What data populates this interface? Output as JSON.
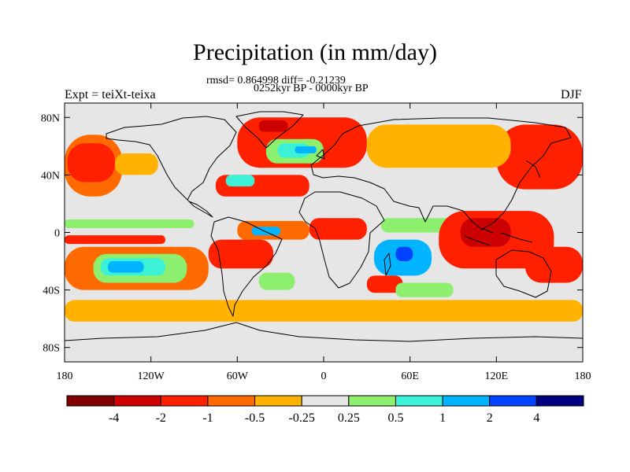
{
  "title": "Precipitation (in mm/day)",
  "stats_line": "rmsd= 0.864998 diff= -0.21239",
  "period_line": "0252kyr BP - 0000kyr BP",
  "left_label": "Expt = teiXt-teixa",
  "right_label": "DJF",
  "chart_data": {
    "type": "heatmap",
    "projection": "cylindrical-equidistant",
    "variable": "Precipitation difference (mm/day)",
    "xlim": [
      -180,
      180
    ],
    "ylim": [
      -90,
      90
    ],
    "x_ticks": [
      -180,
      -120,
      -60,
      0,
      60,
      120,
      180
    ],
    "x_tick_labels": [
      "180",
      "120W",
      "60W",
      "0",
      "60E",
      "120E",
      "180"
    ],
    "y_ticks": [
      80,
      40,
      0,
      -40,
      -80
    ],
    "y_tick_labels": [
      "80N",
      "40N",
      "0",
      "40S",
      "80S"
    ],
    "colorbar": {
      "colors": [
        "#800000",
        "#cc0000",
        "#ff2000",
        "#ff6a00",
        "#ffb300",
        "#e6e6e6",
        "#8cf06e",
        "#3cf2d6",
        "#00b4ff",
        "#0044ff",
        "#000080"
      ],
      "boundaries": [
        -4,
        -2,
        -1,
        -0.5,
        -0.25,
        0.25,
        0.5,
        1,
        2,
        4
      ],
      "tick_labels": [
        "-4",
        "-2",
        "-1",
        "-0.5",
        "-0.25",
        "0.25",
        "0.5",
        "1",
        "2",
        "4"
      ]
    },
    "regions": [
      {
        "name": "southern-ocean-band",
        "lon": [
          -180,
          180
        ],
        "lat": [
          -62,
          -47
        ],
        "value": -0.35
      },
      {
        "name": "southern-ocean-inner-band",
        "lon": [
          -180,
          180
        ],
        "lat": [
          -58,
          -51
        ],
        "value": -0.35
      },
      {
        "name": "north-pacific-west",
        "lon": [
          -180,
          -140
        ],
        "lat": [
          25,
          68
        ],
        "value": -0.7
      },
      {
        "name": "north-pacific-core",
        "lon": [
          -178,
          -145
        ],
        "lat": [
          35,
          62
        ],
        "value": -1.5
      },
      {
        "name": "northeast-pacific",
        "lon": [
          -145,
          -115
        ],
        "lat": [
          40,
          55
        ],
        "value": -0.35
      },
      {
        "name": "southeast-pacific-outer",
        "lon": [
          -180,
          -80
        ],
        "lat": [
          -40,
          -10
        ],
        "value": -0.7
      },
      {
        "name": "southeast-pacific-green",
        "lon": [
          -160,
          -95
        ],
        "lat": [
          -35,
          -15
        ],
        "value": 0.4
      },
      {
        "name": "southeast-pacific-cyan",
        "lon": [
          -155,
          -110
        ],
        "lat": [
          -30,
          -18
        ],
        "value": 0.75
      },
      {
        "name": "southeast-pacific-blue",
        "lon": [
          -150,
          -125
        ],
        "lat": [
          -28,
          -20
        ],
        "value": 1.5
      },
      {
        "name": "equatorial-pacific-green",
        "lon": [
          -180,
          -90
        ],
        "lat": [
          3,
          9
        ],
        "value": 0.4
      },
      {
        "name": "equatorial-pacific-red",
        "lon": [
          -180,
          -110
        ],
        "lat": [
          -8,
          -2
        ],
        "value": -1.5
      },
      {
        "name": "north-atlantic-red",
        "lon": [
          -60,
          30
        ],
        "lat": [
          45,
          80
        ],
        "value": -1.5
      },
      {
        "name": "north-atlantic-darkred",
        "lon": [
          -45,
          -25
        ],
        "lat": [
          70,
          78
        ],
        "value": -3
      },
      {
        "name": "north-atlantic-green",
        "lon": [
          -40,
          0
        ],
        "lat": [
          48,
          65
        ],
        "value": 0.4
      },
      {
        "name": "north-atlantic-cyan",
        "lon": [
          -32,
          -10
        ],
        "lat": [
          52,
          62
        ],
        "value": 0.75
      },
      {
        "name": "north-atlantic-blue",
        "lon": [
          -20,
          -5
        ],
        "lat": [
          55,
          60
        ],
        "value": 1.5
      },
      {
        "name": "subtropical-atlantic-red",
        "lon": [
          -75,
          -10
        ],
        "lat": [
          25,
          40
        ],
        "value": -1.5
      },
      {
        "name": "subtropical-atlantic-cyan",
        "lon": [
          -68,
          -48
        ],
        "lat": [
          32,
          40
        ],
        "value": 0.75
      },
      {
        "name": "atlantic-itcz-orange",
        "lon": [
          -60,
          -10
        ],
        "lat": [
          -5,
          8
        ],
        "value": -0.7
      },
      {
        "name": "atlantic-itcz-blue",
        "lon": [
          -50,
          -30
        ],
        "lat": [
          -2,
          4
        ],
        "value": 1.5
      },
      {
        "name": "south-america-red",
        "lon": [
          -80,
          -35
        ],
        "lat": [
          -25,
          -5
        ],
        "value": -1.5
      },
      {
        "name": "southwest-atlantic-green",
        "lon": [
          -45,
          -20
        ],
        "lat": [
          -40,
          -28
        ],
        "value": 0.4
      },
      {
        "name": "west-africa-red",
        "lon": [
          -10,
          30
        ],
        "lat": [
          -5,
          10
        ],
        "value": -1.5
      },
      {
        "name": "southern-africa-blue",
        "lon": [
          35,
          75
        ],
        "lat": [
          -30,
          -5
        ],
        "value": 1.5
      },
      {
        "name": "southern-africa-navy",
        "lon": [
          50,
          62
        ],
        "lat": [
          -20,
          -10
        ],
        "value": 3
      },
      {
        "name": "southwest-indian-red",
        "lon": [
          30,
          55
        ],
        "lat": [
          -42,
          -30
        ],
        "value": -1.5
      },
      {
        "name": "indian-ocean-green",
        "lon": [
          50,
          90
        ],
        "lat": [
          -45,
          -35
        ],
        "value": 0.4
      },
      {
        "name": "indian-ocean-equatorial-green",
        "lon": [
          40,
          150
        ],
        "lat": [
          0,
          10
        ],
        "value": 0.4
      },
      {
        "name": "maritime-continent-red",
        "lon": [
          80,
          160
        ],
        "lat": [
          -25,
          15
        ],
        "value": -1.5
      },
      {
        "name": "maritime-continent-darkred",
        "lon": [
          95,
          130
        ],
        "lat": [
          -10,
          10
        ],
        "value": -3
      },
      {
        "name": "northwest-pacific-red",
        "lon": [
          120,
          180
        ],
        "lat": [
          30,
          75
        ],
        "value": -1.5
      },
      {
        "name": "north-asia-orange",
        "lon": [
          30,
          130
        ],
        "lat": [
          45,
          75
        ],
        "value": -0.35
      },
      {
        "name": "south-pacific-red",
        "lon": [
          140,
          180
        ],
        "lat": [
          -35,
          -10
        ],
        "value": -1.5
      }
    ]
  }
}
